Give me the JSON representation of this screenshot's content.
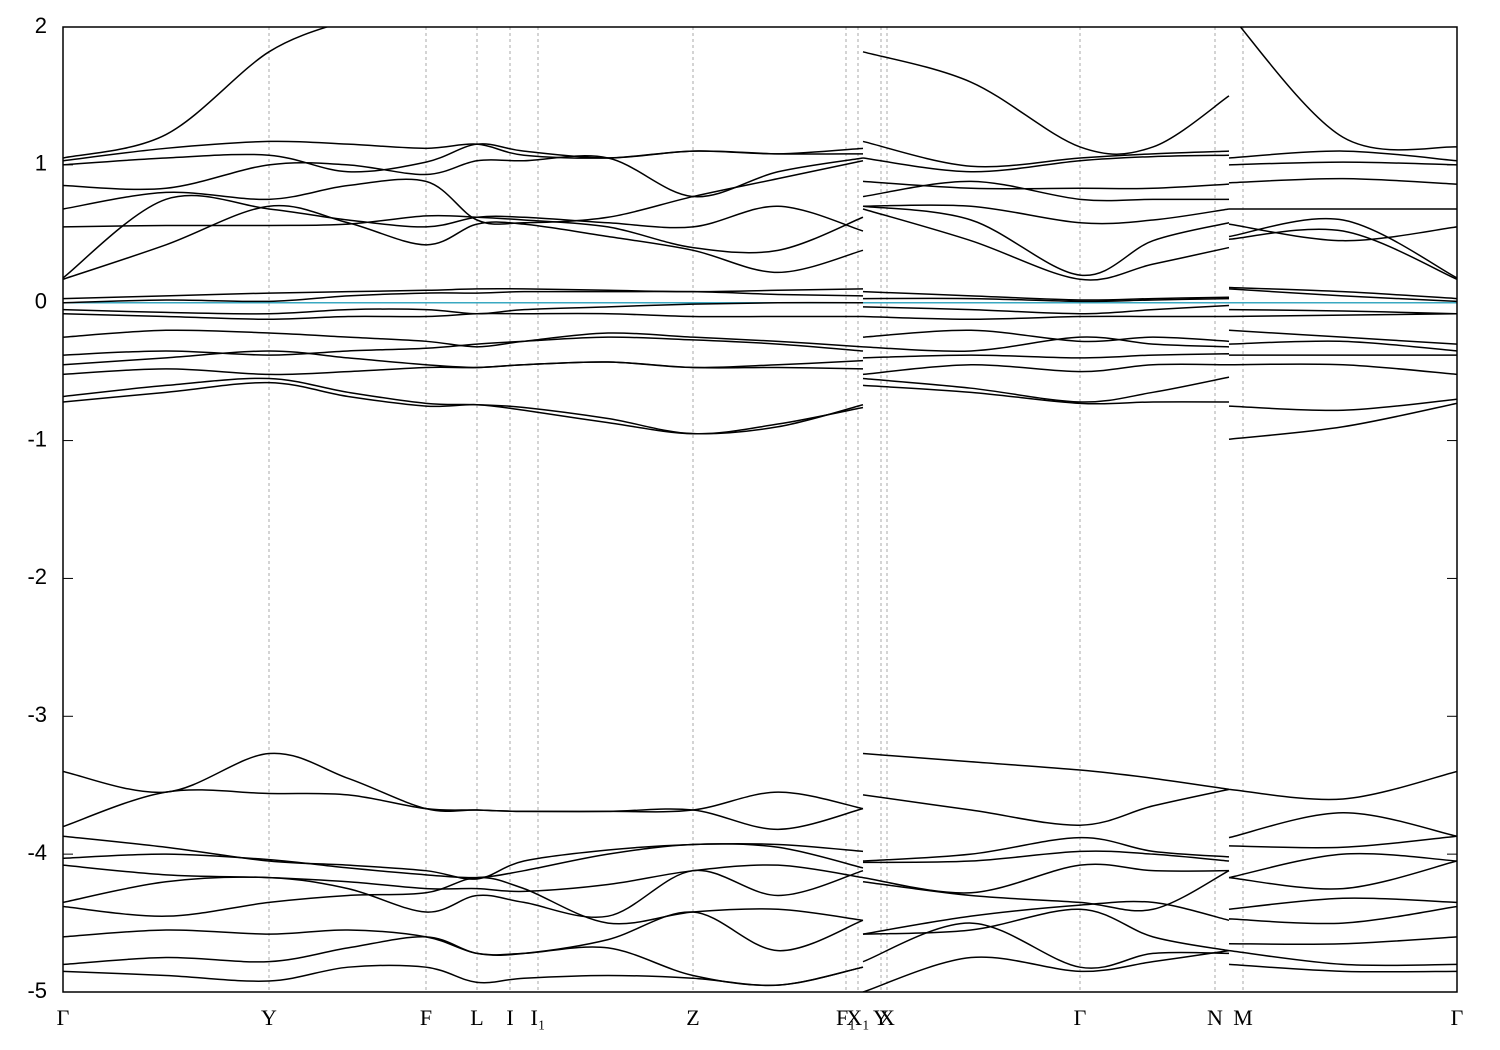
{
  "chart_data": {
    "type": "line",
    "color": "#000000",
    "grid": true,
    "fermi_level": {
      "value": 0,
      "color": "#3aa8c1"
    },
    "ylim": [
      -5,
      2
    ],
    "yticks": [
      2,
      1,
      0,
      -1,
      -2,
      -3,
      -4,
      -5
    ],
    "xlim": [
      0,
      1394
    ],
    "xticks": [
      {
        "value": 0,
        "label": "Γ"
      },
      {
        "value": 206,
        "label": "Y"
      },
      {
        "value": 363,
        "label": "F"
      },
      {
        "value": 414,
        "label": "L"
      },
      {
        "value": 447,
        "label": "I"
      },
      {
        "value": 475,
        "label": "I₁"
      },
      {
        "value": 630,
        "label": "Z"
      },
      {
        "value": 783,
        "label": "F₁"
      },
      {
        "value": 795,
        "label": "X₁"
      },
      {
        "value": 818,
        "label": "Y"
      },
      {
        "value": 824,
        "label": "X"
      },
      {
        "value": 1017,
        "label": "Γ"
      },
      {
        "value": 1152,
        "label": "N"
      },
      {
        "value": 1180,
        "label": "M"
      },
      {
        "value": 1394,
        "label": "Γ"
      }
    ],
    "x": [
      0,
      103,
      206,
      285,
      363,
      414,
      461,
      545,
      630,
      715,
      800,
      800,
      800,
      908,
      1017,
      1090,
      1166,
      1166,
      1166,
      1280,
      1394
    ],
    "series": [
      {
        "values": [
          0.17,
          0.42,
          0.7,
          0.58,
          0.42,
          0.57,
          0.57,
          0.48,
          0.38,
          0.22,
          0.38,
          null,
          0.68,
          0.45,
          0.17,
          0.28,
          0.4,
          null,
          0.46,
          0.52,
          0.17
        ]
      },
      {
        "values": [
          0.18,
          0.75,
          0.68,
          0.6,
          0.55,
          0.62,
          0.62,
          0.58,
          0.55,
          0.7,
          0.52,
          null,
          0.7,
          0.6,
          0.2,
          0.45,
          0.58,
          null,
          0.48,
          0.6,
          0.18
        ]
      },
      {
        "values": [
          0.55,
          0.56,
          0.56,
          0.57,
          0.63,
          0.62,
          0.6,
          0.55,
          0.4,
          0.38,
          0.62,
          null,
          0.7,
          0.7,
          0.58,
          0.6,
          0.68,
          null,
          0.57,
          0.45,
          0.55
        ]
      },
      {
        "values": [
          0.68,
          0.8,
          0.75,
          0.85,
          0.88,
          0.6,
          0.58,
          0.62,
          0.77,
          0.9,
          1.03,
          null,
          0.77,
          0.88,
          0.75,
          0.75,
          0.75,
          null,
          0.68,
          0.68,
          0.68
        ]
      },
      {
        "values": [
          0.85,
          0.83,
          1.0,
          1.0,
          0.93,
          1.03,
          1.03,
          1.05,
          0.77,
          0.95,
          1.05,
          null,
          0.88,
          0.83,
          0.83,
          0.83,
          0.86,
          null,
          0.87,
          0.9,
          0.86
        ]
      },
      {
        "values": [
          1.0,
          1.05,
          1.07,
          0.95,
          1.02,
          1.15,
          1.1,
          1.05,
          1.1,
          1.08,
          1.08,
          null,
          1.05,
          0.95,
          1.03,
          1.06,
          1.07,
          null,
          1.0,
          1.02,
          1.0
        ]
      },
      {
        "values": [
          1.03,
          1.12,
          1.17,
          1.15,
          1.12,
          1.15,
          1.07,
          1.05,
          1.1,
          1.08,
          1.12,
          null,
          1.17,
          0.99,
          1.05,
          1.08,
          1.1,
          null,
          1.05,
          1.1,
          1.03
        ]
      },
      {
        "values": [
          1.05,
          1.22,
          1.82,
          2.05,
          null,
          null,
          null,
          null,
          null,
          null,
          null,
          null,
          1.82,
          1.6,
          1.13,
          1.13,
          1.5,
          null,
          2.1,
          1.2,
          1.13
        ]
      },
      {
        "values": [
          0.03,
          0.05,
          0.07,
          0.08,
          0.09,
          0.1,
          0.1,
          0.09,
          0.08,
          0.09,
          0.1,
          null,
          0.08,
          0.05,
          0.02,
          0.03,
          0.04,
          null,
          0.11,
          0.08,
          0.03
        ]
      },
      {
        "values": [
          0.0,
          0.02,
          0.01,
          0.05,
          0.07,
          0.07,
          0.08,
          0.08,
          0.08,
          0.06,
          0.05,
          null,
          0.03,
          0.03,
          0.01,
          0.02,
          0.03,
          null,
          0.1,
          0.05,
          0.01
        ]
      },
      {
        "values": [
          -0.05,
          -0.07,
          -0.08,
          -0.05,
          -0.05,
          -0.08,
          -0.05,
          -0.03,
          -0.01,
          0.0,
          0.0,
          null,
          -0.03,
          -0.05,
          -0.08,
          -0.05,
          -0.02,
          null,
          -0.05,
          -0.06,
          -0.08
        ]
      },
      {
        "values": [
          -0.08,
          -0.1,
          -0.12,
          -0.1,
          -0.1,
          -0.08,
          -0.08,
          -0.08,
          -0.1,
          -0.1,
          -0.1,
          null,
          -0.1,
          -0.12,
          -0.1,
          -0.1,
          -0.1,
          null,
          -0.1,
          -0.09,
          -0.08
        ]
      },
      {
        "values": [
          -0.25,
          -0.2,
          -0.22,
          -0.25,
          -0.28,
          -0.32,
          -0.28,
          -0.22,
          -0.25,
          -0.28,
          -0.32,
          null,
          -0.25,
          -0.2,
          -0.28,
          -0.25,
          -0.28,
          null,
          -0.2,
          -0.25,
          -0.3
        ]
      },
      {
        "values": [
          -0.38,
          -0.35,
          -0.38,
          -0.35,
          -0.33,
          -0.3,
          -0.28,
          -0.25,
          -0.27,
          -0.3,
          -0.35,
          null,
          -0.32,
          -0.35,
          -0.25,
          -0.3,
          -0.32,
          null,
          -0.3,
          -0.28,
          -0.35
        ]
      },
      {
        "values": [
          -0.45,
          -0.4,
          -0.35,
          -0.4,
          -0.45,
          -0.47,
          -0.45,
          -0.43,
          -0.47,
          -0.45,
          -0.42,
          null,
          -0.4,
          -0.38,
          -0.4,
          -0.38,
          -0.37,
          null,
          -0.38,
          -0.38,
          -0.38
        ]
      },
      {
        "values": [
          -0.52,
          -0.48,
          -0.52,
          -0.5,
          -0.47,
          -0.47,
          -0.45,
          -0.43,
          -0.47,
          -0.47,
          -0.48,
          null,
          -0.52,
          -0.45,
          -0.5,
          -0.45,
          -0.45,
          null,
          -0.45,
          -0.45,
          -0.52
        ]
      },
      {
        "values": [
          -0.68,
          -0.6,
          -0.55,
          -0.65,
          -0.73,
          -0.74,
          -0.76,
          -0.84,
          -0.95,
          -0.88,
          -0.76,
          null,
          -0.55,
          -0.62,
          -0.72,
          -0.65,
          -0.54,
          null,
          -0.75,
          -0.78,
          -0.7
        ]
      },
      {
        "values": [
          -0.72,
          -0.65,
          -0.58,
          -0.68,
          -0.75,
          -0.74,
          -0.78,
          -0.87,
          -0.95,
          -0.9,
          -0.74,
          null,
          -0.6,
          -0.65,
          -0.73,
          -0.72,
          -0.72,
          null,
          -0.99,
          -0.9,
          -0.73
        ]
      },
      {
        "values": [
          -3.4,
          -3.55,
          -3.27,
          -3.45,
          -3.67,
          -3.68,
          -3.69,
          -3.69,
          -3.68,
          -3.55,
          -3.67,
          null,
          -3.27,
          -3.33,
          -3.39,
          -3.45,
          -3.53,
          null,
          -3.53,
          -3.6,
          -3.4
        ]
      },
      {
        "values": [
          -3.8,
          -3.55,
          -3.56,
          -3.57,
          -3.67,
          -3.68,
          -3.69,
          -3.69,
          -3.68,
          -3.82,
          -3.67,
          null,
          -3.57,
          -3.68,
          -3.79,
          -3.65,
          -3.53,
          null,
          -3.88,
          -3.7,
          -3.87
        ]
      },
      {
        "values": [
          -3.87,
          -3.95,
          -4.05,
          -4.08,
          -4.12,
          -4.18,
          -4.05,
          -3.97,
          -3.93,
          -3.93,
          -3.98,
          null,
          -4.05,
          -4.0,
          -3.88,
          -3.98,
          -4.02,
          null,
          -3.94,
          -3.95,
          -3.87
        ]
      },
      {
        "values": [
          -4.03,
          -4.0,
          -4.04,
          -4.1,
          -4.15,
          -4.17,
          -4.12,
          -4.0,
          -3.93,
          -3.95,
          -4.1,
          null,
          -4.06,
          -4.05,
          -3.98,
          -4.0,
          -4.05,
          null,
          -4.17,
          -4.0,
          -4.05
        ]
      },
      {
        "values": [
          -4.08,
          -4.15,
          -4.17,
          -4.2,
          -4.25,
          -4.25,
          -4.27,
          -4.22,
          -4.12,
          -4.08,
          -4.17,
          null,
          -4.17,
          -4.28,
          -4.08,
          -4.12,
          -4.12,
          null,
          -4.17,
          -4.25,
          -4.05
        ]
      },
      {
        "values": [
          -4.35,
          -4.2,
          -4.17,
          -4.25,
          -4.42,
          -4.3,
          -4.35,
          -4.45,
          -4.12,
          -4.3,
          -4.12,
          null,
          -4.2,
          -4.3,
          -4.35,
          -4.4,
          -4.12,
          null,
          -4.4,
          -4.32,
          -4.35
        ]
      },
      {
        "values": [
          -4.38,
          -4.45,
          -4.35,
          -4.3,
          -4.28,
          -4.17,
          -4.25,
          -4.5,
          -4.42,
          -4.4,
          -4.48,
          null,
          -4.58,
          -4.45,
          -4.37,
          -4.35,
          -4.48,
          null,
          -4.47,
          -4.5,
          -4.38
        ]
      },
      {
        "values": [
          -4.6,
          -4.55,
          -4.58,
          -4.55,
          -4.6,
          -4.72,
          -4.72,
          -4.62,
          -4.42,
          -4.7,
          -4.48,
          null,
          -4.58,
          -4.55,
          -4.4,
          -4.6,
          -4.7,
          null,
          -4.65,
          -4.65,
          -4.6
        ]
      },
      {
        "values": [
          -4.8,
          -4.75,
          -4.78,
          -4.68,
          -4.6,
          -4.72,
          -4.72,
          -4.68,
          -4.88,
          -4.95,
          -4.82,
          null,
          -4.78,
          -4.5,
          -4.82,
          -4.72,
          -4.72,
          null,
          -4.7,
          -4.8,
          -4.8
        ]
      },
      {
        "values": [
          -4.85,
          -4.88,
          -4.92,
          -4.82,
          -4.82,
          -4.93,
          -4.9,
          -4.88,
          -4.9,
          -4.95,
          -4.82,
          null,
          -5.0,
          -4.75,
          -4.85,
          -4.78,
          -4.7,
          null,
          -4.8,
          -4.85,
          -4.85
        ]
      }
    ]
  }
}
